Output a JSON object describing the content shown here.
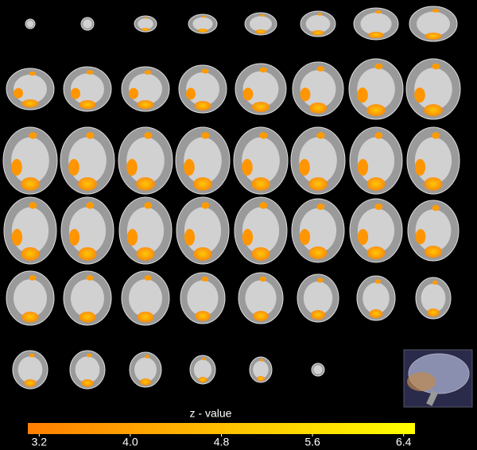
{
  "colorbar": {
    "label": "z - value",
    "range": [
      3.1,
      6.5
    ],
    "ticks": [
      3.2,
      {
        "value": 4,
        "label": "4.0"
      },
      4.8,
      5.6,
      6.4
    ],
    "colors": [
      "#ff7f00",
      "#ffff00"
    ]
  }
}
